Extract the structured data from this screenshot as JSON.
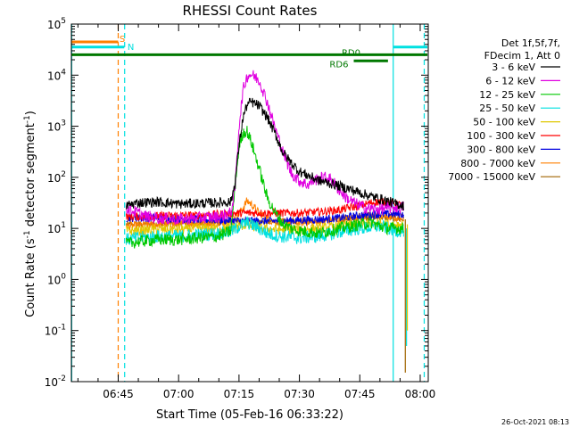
{
  "chart_data": {
    "type": "line",
    "title": "RHESSI Count Rates",
    "xlabel": "Start Time (05-Feb-16 06:33:22)",
    "ylabel_main": "Count Rate (s",
    "ylabel_sup1": "-1",
    "ylabel_mid": " detector segment",
    "ylabel_sup2": "-1",
    "ylabel_end": ")",
    "timestamp": "26-Oct-2021 08:13",
    "x_unit": "minutes of day",
    "xlim": [
      393.37,
      482.0
    ],
    "ylim_log10": [
      -2,
      5
    ],
    "yscale": "log",
    "x_ticks": [
      {
        "t": 405,
        "label": "06:45"
      },
      {
        "t": 420,
        "label": "07:00"
      },
      {
        "t": 435,
        "label": "07:15"
      },
      {
        "t": 450,
        "label": "07:30"
      },
      {
        "t": 465,
        "label": "07:45"
      },
      {
        "t": 480,
        "label": "08:00"
      }
    ],
    "y_ticks": [
      {
        "e": -2,
        "base": "10",
        "exp": "-2"
      },
      {
        "e": -1,
        "base": "10",
        "exp": "-1"
      },
      {
        "e": 0,
        "base": "10",
        "exp": "0"
      },
      {
        "e": 1,
        "base": "10",
        "exp": "1"
      },
      {
        "e": 2,
        "base": "10",
        "exp": "2"
      },
      {
        "e": 3,
        "base": "10",
        "exp": "3"
      },
      {
        "e": 4,
        "base": "10",
        "exp": "4"
      },
      {
        "e": 5,
        "base": "10",
        "exp": "5"
      }
    ],
    "legend": {
      "header": [
        "Det 1f,5f,7f,",
        "FDecim 1, Att 0"
      ],
      "entries": [
        {
          "label": "3 - 6 keV",
          "color": "#000000"
        },
        {
          "label": "6 - 12 keV",
          "color": "#e000e0"
        },
        {
          "label": "12 - 25 keV",
          "color": "#00c800"
        },
        {
          "label": "25 - 50 keV",
          "color": "#00e0e0"
        },
        {
          "label": "50 - 100 keV",
          "color": "#e0c800"
        },
        {
          "label": "100 - 300 keV",
          "color": "#ff0000"
        },
        {
          "label": "300 - 800 keV",
          "color": "#0000e0"
        },
        {
          "label": "800 - 7000 keV",
          "color": "#ff8000"
        },
        {
          "label": "7000 - 15000 keV",
          "color": "#a06400"
        }
      ]
    },
    "flags": [
      {
        "label": "S",
        "color": "#ff8000",
        "t_start": 393.4,
        "t_end": 405.0,
        "log_y": 4.65,
        "label_t": 405.3,
        "label_log_y": 4.72
      },
      {
        "label": "N",
        "color": "#00e0e0",
        "t_start": 393.4,
        "t_end": 406.5,
        "log_y": 4.55,
        "label_t": 407.3,
        "label_log_y": 4.56
      },
      {
        "label": "N",
        "color": "#00e0e0",
        "t_start": 473.3,
        "t_end": 481.8,
        "log_y": 4.55,
        "label_t": null,
        "label_log_y": null
      },
      {
        "label": "RD0",
        "color": "#007800",
        "t_start": 393.4,
        "t_end": 481.8,
        "log_y": 4.4,
        "label_t": 460.5,
        "label_log_y": 4.45
      },
      {
        "label": "RD6",
        "color": "#007800",
        "t_start": 463.5,
        "t_end": 472.0,
        "log_y": 4.28,
        "label_t": 457.5,
        "label_log_y": 4.22
      }
    ],
    "vlines": [
      {
        "t": 393.45,
        "color": "#00e0e0",
        "style": "solid"
      },
      {
        "t": 405.0,
        "color": "#ff8000",
        "style": "dashed"
      },
      {
        "t": 406.6,
        "color": "#00e0e0",
        "style": "dashed"
      },
      {
        "t": 473.3,
        "color": "#00e0e0",
        "style": "solid"
      },
      {
        "t": 481.0,
        "color": "#00e0e0",
        "style": "dashed"
      }
    ],
    "series": [
      {
        "name": "3 - 6 keV",
        "color": "#000000",
        "noise": 0.1,
        "points": [
          [
            407,
            28
          ],
          [
            410,
            32
          ],
          [
            415,
            33
          ],
          [
            420,
            30
          ],
          [
            425,
            31
          ],
          [
            430,
            32
          ],
          [
            433,
            33
          ],
          [
            434,
            80
          ],
          [
            435,
            400
          ],
          [
            436,
            1500
          ],
          [
            437,
            2600
          ],
          [
            438,
            3000
          ],
          [
            440,
            2500
          ],
          [
            442,
            1500
          ],
          [
            444,
            700
          ],
          [
            446,
            300
          ],
          [
            448,
            190
          ],
          [
            450,
            130
          ],
          [
            455,
            85
          ],
          [
            458,
            75
          ],
          [
            462,
            60
          ],
          [
            465,
            50
          ],
          [
            468,
            42
          ],
          [
            470,
            38
          ],
          [
            472,
            34
          ],
          [
            474,
            30
          ],
          [
            475,
            29
          ],
          [
            476,
            28
          ]
        ]
      },
      {
        "name": "6 - 12 keV",
        "color": "#e000e0",
        "noise": 0.12,
        "points": [
          [
            407,
            25
          ],
          [
            410,
            20
          ],
          [
            412,
            17
          ],
          [
            415,
            16
          ],
          [
            420,
            15
          ],
          [
            425,
            16
          ],
          [
            430,
            17
          ],
          [
            433,
            20
          ],
          [
            434,
            60
          ],
          [
            435,
            1000
          ],
          [
            436,
            5000
          ],
          [
            437,
            9500
          ],
          [
            438,
            10500
          ],
          [
            440,
            8000
          ],
          [
            442,
            3000
          ],
          [
            444,
            900
          ],
          [
            446,
            300
          ],
          [
            448,
            120
          ],
          [
            450,
            85
          ],
          [
            452,
            72
          ],
          [
            454,
            90
          ],
          [
            456,
            100
          ],
          [
            458,
            90
          ],
          [
            460,
            55
          ],
          [
            462,
            38
          ],
          [
            464,
            30
          ],
          [
            466,
            26
          ],
          [
            468,
            24
          ],
          [
            470,
            24
          ],
          [
            472,
            25
          ],
          [
            474,
            26
          ],
          [
            476,
            26
          ]
        ]
      },
      {
        "name": "12 - 25 keV",
        "color": "#00c800",
        "noise": 0.12,
        "points": [
          [
            407,
            5
          ],
          [
            410,
            5.5
          ],
          [
            415,
            6
          ],
          [
            420,
            6
          ],
          [
            425,
            6.5
          ],
          [
            430,
            7
          ],
          [
            433,
            9
          ],
          [
            434,
            60
          ],
          [
            435,
            400
          ],
          [
            436,
            750
          ],
          [
            437,
            800
          ],
          [
            438,
            500
          ],
          [
            440,
            150
          ],
          [
            442,
            40
          ],
          [
            444,
            20
          ],
          [
            446,
            12
          ],
          [
            448,
            10
          ],
          [
            450,
            9
          ],
          [
            455,
            8
          ],
          [
            460,
            10
          ],
          [
            465,
            12
          ],
          [
            468,
            13
          ],
          [
            470,
            11
          ],
          [
            472,
            10
          ],
          [
            474,
            10
          ],
          [
            476,
            10
          ]
        ]
      },
      {
        "name": "25 - 50 keV",
        "color": "#00e0e0",
        "noise": 0.13,
        "points": [
          [
            407,
            6
          ],
          [
            410,
            6.5
          ],
          [
            415,
            7
          ],
          [
            420,
            7
          ],
          [
            425,
            7.5
          ],
          [
            430,
            8
          ],
          [
            433,
            8.5
          ],
          [
            435,
            11
          ],
          [
            437,
            13
          ],
          [
            439,
            11
          ],
          [
            442,
            8
          ],
          [
            445,
            7
          ],
          [
            450,
            6.5
          ],
          [
            455,
            7
          ],
          [
            460,
            8.5
          ],
          [
            465,
            10
          ],
          [
            470,
            11
          ],
          [
            472,
            10
          ],
          [
            474,
            9
          ],
          [
            476,
            9
          ]
        ]
      },
      {
        "name": "50 - 100 keV",
        "color": "#e0c800",
        "noise": 0.1,
        "points": [
          [
            407,
            9
          ],
          [
            410,
            9
          ],
          [
            415,
            9.5
          ],
          [
            420,
            9.5
          ],
          [
            425,
            10
          ],
          [
            430,
            10
          ],
          [
            435,
            11
          ],
          [
            437,
            12
          ],
          [
            440,
            10
          ],
          [
            445,
            9.5
          ],
          [
            450,
            9.5
          ],
          [
            455,
            10
          ],
          [
            460,
            11
          ],
          [
            465,
            12
          ],
          [
            470,
            13
          ],
          [
            472,
            12
          ],
          [
            474,
            12
          ],
          [
            476,
            12
          ]
        ]
      },
      {
        "name": "100 - 300 keV",
        "color": "#ff0000",
        "noise": 0.08,
        "points": [
          [
            407,
            17
          ],
          [
            410,
            17
          ],
          [
            415,
            17.5
          ],
          [
            420,
            18
          ],
          [
            425,
            18
          ],
          [
            430,
            19
          ],
          [
            435,
            20
          ],
          [
            440,
            20
          ],
          [
            445,
            20
          ],
          [
            450,
            20
          ],
          [
            455,
            21
          ],
          [
            460,
            23
          ],
          [
            465,
            28
          ],
          [
            468,
            32
          ],
          [
            470,
            33
          ],
          [
            472,
            32
          ],
          [
            474,
            30
          ],
          [
            476,
            28
          ]
        ]
      },
      {
        "name": "300 - 800 keV",
        "color": "#0000e0",
        "noise": 0.08,
        "points": [
          [
            407,
            16
          ],
          [
            410,
            16
          ],
          [
            415,
            16
          ],
          [
            420,
            15.5
          ],
          [
            425,
            15
          ],
          [
            430,
            14.5
          ],
          [
            435,
            14
          ],
          [
            440,
            14
          ],
          [
            445,
            14
          ],
          [
            450,
            14.5
          ],
          [
            455,
            15
          ],
          [
            460,
            16
          ],
          [
            465,
            18
          ],
          [
            470,
            19
          ],
          [
            472,
            19
          ],
          [
            474,
            19
          ],
          [
            476,
            19
          ]
        ]
      },
      {
        "name": "800 - 7000 keV",
        "color": "#ff8000",
        "noise": 0.08,
        "points": [
          [
            407,
            11
          ],
          [
            410,
            11.5
          ],
          [
            415,
            12
          ],
          [
            420,
            12
          ],
          [
            425,
            12.5
          ],
          [
            430,
            13
          ],
          [
            434,
            15
          ],
          [
            436,
            25
          ],
          [
            437,
            35
          ],
          [
            438,
            30
          ],
          [
            440,
            20
          ],
          [
            443,
            14
          ],
          [
            446,
            13
          ],
          [
            450,
            13
          ],
          [
            455,
            13.5
          ],
          [
            460,
            15
          ],
          [
            465,
            17
          ],
          [
            470,
            18
          ],
          [
            472,
            17
          ],
          [
            474,
            16
          ],
          [
            476,
            16
          ]
        ]
      },
      {
        "name": "7000 - 15000 keV",
        "color": "#a06400",
        "noise": 0.06,
        "points": [
          [
            407,
            12
          ],
          [
            410,
            12
          ],
          [
            415,
            12.5
          ],
          [
            420,
            12.5
          ],
          [
            425,
            13
          ],
          [
            430,
            13
          ],
          [
            435,
            13.5
          ],
          [
            440,
            13.5
          ],
          [
            445,
            13.5
          ],
          [
            450,
            14
          ],
          [
            455,
            14
          ],
          [
            460,
            15
          ],
          [
            465,
            16
          ],
          [
            470,
            16.5
          ],
          [
            472,
            16
          ],
          [
            474,
            15.5
          ],
          [
            476,
            15
          ]
        ]
      }
    ],
    "tail_drops": [
      {
        "t": 476.3,
        "from": 15,
        "to": 0.015,
        "color": "#a06400"
      },
      {
        "t": 476.6,
        "from": 10,
        "to": 0.05,
        "color": "#00e0e0"
      },
      {
        "t": 476.8,
        "from": 12,
        "to": 0.1,
        "color": "#e0c800"
      }
    ]
  }
}
